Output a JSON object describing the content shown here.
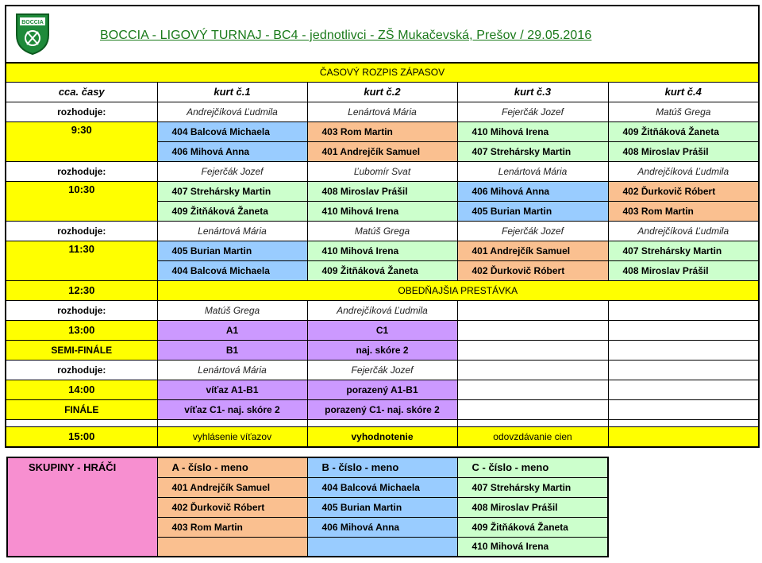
{
  "header": {
    "title": "BOCCIA - LIGOVÝ TURNAJ - BC4 - jednotlivci - ZŠ Mukačevská, Prešov / 29.05.2016",
    "logo_text": "BOCCIA"
  },
  "colors": {
    "yellow": "#FFFF00",
    "blue": "#99CCFF",
    "orange": "#FAC090",
    "green": "#CCFFCC",
    "purple": "#CC99FF",
    "pink": "#F78FD0",
    "title_green": "#1A7A1A"
  },
  "schedule": {
    "title": "ČASOVÝ ROZPIS ZÁPASOV",
    "columns": [
      "cca. časy",
      "kurt č.1",
      "kurt č.2",
      "kurt č.3",
      "kurt č.4"
    ],
    "referee_label": "rozhoduje:",
    "slots": [
      {
        "time": "9:30",
        "sub": "",
        "referees": [
          "Andrejčíková Ľudmila",
          "Lenártová Mária",
          "Fejerčák Jozef",
          "Matúš Grega"
        ],
        "rows": [
          [
            [
              "404 Balcová Michaela",
              "b"
            ],
            [
              "403 Rom Martin",
              "o"
            ],
            [
              "410 Mihová Irena",
              "g"
            ],
            [
              "409 Žitňáková Žaneta",
              "g"
            ]
          ],
          [
            [
              "406 Mihová Anna",
              "b"
            ],
            [
              "401 Andrejčík Samuel",
              "o"
            ],
            [
              "407 Strehársky Martin",
              "g"
            ],
            [
              "408 Miroslav Prášil",
              "g"
            ]
          ]
        ]
      },
      {
        "time": "10:30",
        "sub": "",
        "referees": [
          "Fejerčák Jozef",
          "Ľubomír Svat",
          "Lenártová Mária",
          "Andrejčíková Ľudmila"
        ],
        "rows": [
          [
            [
              "407 Strehársky Martin",
              "g"
            ],
            [
              "408 Miroslav Prášil",
              "g"
            ],
            [
              "406 Mihová Anna",
              "b"
            ],
            [
              "402 Ďurkovič Róbert",
              "o"
            ]
          ],
          [
            [
              "409 Žitňáková Žaneta",
              "g"
            ],
            [
              "410 Mihová Irena",
              "g"
            ],
            [
              "405 Burian Martin",
              "b"
            ],
            [
              "403 Rom Martin",
              "o"
            ]
          ]
        ]
      },
      {
        "time": "11:30",
        "sub": "",
        "referees": [
          "Lenártová Mária",
          "Matúš Grega",
          "Fejerčák Jozef",
          "Andrejčíková Ľudmila"
        ],
        "rows": [
          [
            [
              "405 Burian Martin",
              "b"
            ],
            [
              "410 Mihová Irena",
              "g"
            ],
            [
              "401 Andrejčík Samuel",
              "o"
            ],
            [
              "407 Strehársky Martin",
              "g"
            ]
          ],
          [
            [
              "404 Balcová Michaela",
              "b"
            ],
            [
              "409 Žitňáková Žaneta",
              "g"
            ],
            [
              "402 Ďurkovič Róbert",
              "o"
            ],
            [
              "408 Miroslav Prášil",
              "g"
            ]
          ]
        ]
      }
    ],
    "break": {
      "time": "12:30",
      "label": "OBEDŇAJŠIA PRESTÁVKA"
    },
    "finals": [
      {
        "time": "13:00",
        "sub": "SEMI-FINÁLE",
        "referees": [
          "Matúš Grega",
          "Andrejčíková Ľudmila",
          "",
          ""
        ],
        "rows": [
          [
            "A1",
            "C1",
            "",
            ""
          ],
          [
            "B1",
            "naj. skóre 2",
            "",
            ""
          ]
        ]
      },
      {
        "time": "14:00",
        "sub": "FINÁLE",
        "referees": [
          "Lenártová Mária",
          "Fejerčák Jozef",
          "",
          ""
        ],
        "rows": [
          [
            "víťaz A1-B1",
            "porazený A1-B1",
            "",
            ""
          ],
          [
            "víťaz C1- naj. skóre 2",
            "porazený C1- naj. skóre 2",
            "",
            ""
          ]
        ]
      }
    ],
    "closing": {
      "time": "15:00",
      "items": [
        "vyhlásenie víťazov",
        "vyhodnotenie",
        "odovzdávanie cien",
        ""
      ]
    }
  },
  "groups": {
    "title": "SKUPINY - HRÁČI",
    "headers": [
      "A - číslo - meno",
      "B - číslo - meno",
      "C - číslo - meno"
    ],
    "rows": [
      [
        "401 Andrejčík Samuel",
        "404 Balcová Michaela",
        "407 Strehársky Martin"
      ],
      [
        "402 Ďurkovič Róbert",
        "405 Burian Martin",
        "408 Miroslav Prášil"
      ],
      [
        "403 Rom Martin",
        "406 Mihová Anna",
        "409 Žitňáková Žaneta"
      ],
      [
        "",
        "",
        "410 Mihová Irena"
      ]
    ]
  }
}
